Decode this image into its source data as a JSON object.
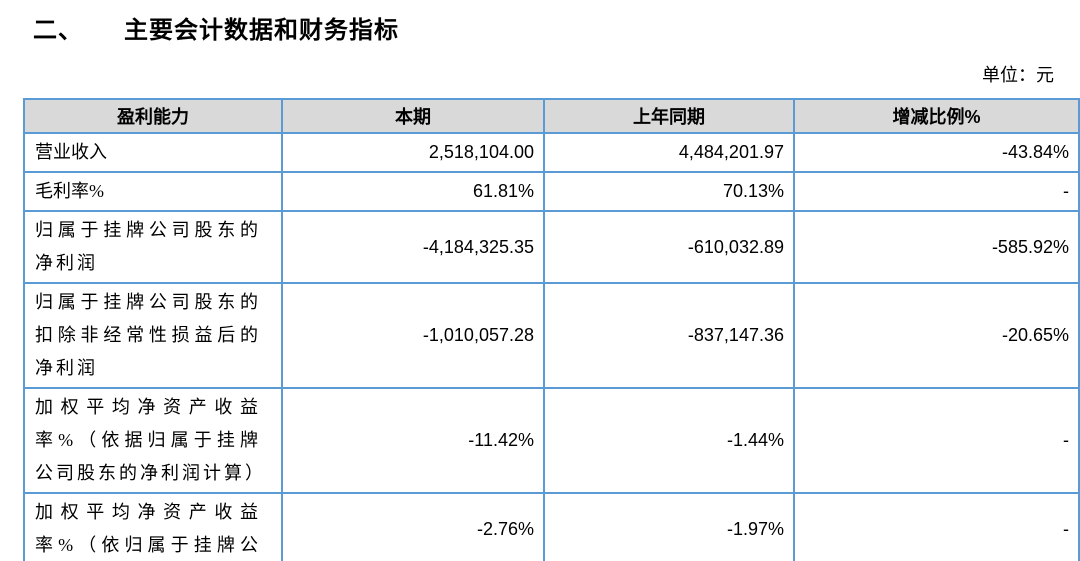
{
  "page": {
    "section_number": "二、",
    "section_title": "主要会计数据和财务指标",
    "unit_label": "单位：元"
  },
  "table": {
    "columns": [
      "盈利能力",
      "本期",
      "上年同期",
      "增减比例%"
    ],
    "rows": [
      {
        "label": "营业收入",
        "current": "2,518,104.00",
        "prior_year": "4,484,201.97",
        "change_pct": "-43.84%"
      },
      {
        "label": "毛利率%",
        "current": "61.81%",
        "prior_year": "70.13%",
        "change_pct": "-"
      },
      {
        "label": "归属于挂牌公司股东的净利润",
        "current": "-4,184,325.35",
        "prior_year": "-610,032.89",
        "change_pct": "-585.92%"
      },
      {
        "label": "归属于挂牌公司股东的扣除非经常性损益后的净利润",
        "current": "-1,010,057.28",
        "prior_year": "-837,147.36",
        "change_pct": "-20.65%"
      },
      {
        "label": "加权平均净资产收益率%（依据归属于挂牌公司股东的净利润计算）",
        "current": "-11.42%",
        "prior_year": "-1.44%",
        "change_pct": "-"
      },
      {
        "label": "加权平均净资产收益率%（依归属于挂牌公司",
        "current": "-2.76%",
        "prior_year": "-1.97%",
        "change_pct": "-"
      }
    ],
    "colors": {
      "border": "#5b9bd5",
      "header_bg": "#d9d9d9",
      "text": "#000000"
    }
  }
}
